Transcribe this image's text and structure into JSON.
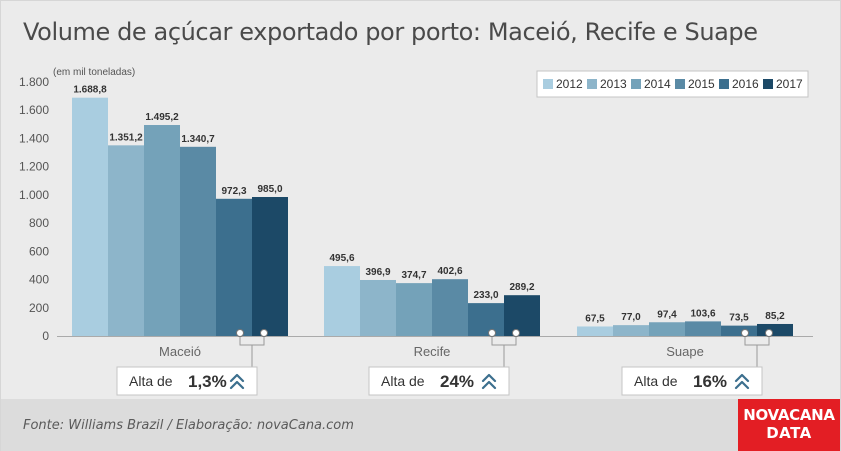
{
  "title": "Volume de açúcar exportado por porto: Maceió, Recife e Suape",
  "source": "Fonte: Williams Brazil / Elaboração: novaCana.com",
  "logo": {
    "line1": "NOVACANA",
    "line2": "DATA"
  },
  "colors": {
    "2012": "#a9cde0",
    "2013": "#8db5ca",
    "2014": "#74a2b9",
    "2015": "#5a8aa5",
    "2016": "#3c6f8e",
    "2017": "#1c4967",
    "callout_arrow": "#3c6f8e",
    "logo_bg": "#e31e24"
  },
  "chart_data": {
    "type": "bar",
    "title": "Volume de açúcar exportado por porto: Maceió, Recife e Suape",
    "unit_label": "(em mil toneladas)",
    "categories": [
      "Maceió",
      "Recife",
      "Suape"
    ],
    "series": [
      {
        "name": "2012",
        "values": [
          1688.8,
          495.6,
          67.5
        ],
        "labels": [
          "1.688,8",
          "495,6",
          "67,5"
        ]
      },
      {
        "name": "2013",
        "values": [
          1351.2,
          396.9,
          77.0
        ],
        "labels": [
          "1.351,2",
          "396,9",
          "77,0"
        ]
      },
      {
        "name": "2014",
        "values": [
          1495.2,
          374.7,
          97.4
        ],
        "labels": [
          "1.495,2",
          "374,7",
          "97,4"
        ]
      },
      {
        "name": "2015",
        "values": [
          1340.7,
          402.6,
          103.6
        ],
        "labels": [
          "1.340,7",
          "402,6",
          "103,6"
        ]
      },
      {
        "name": "2016",
        "values": [
          972.3,
          233.0,
          73.5
        ],
        "labels": [
          "972,3",
          "233,0",
          "73,5"
        ]
      },
      {
        "name": "2017",
        "values": [
          985.0,
          289.2,
          85.2
        ],
        "labels": [
          "985,0",
          "289,2",
          "85,2"
        ]
      }
    ],
    "yticks": [
      {
        "value": 0,
        "label": "0"
      },
      {
        "value": 200,
        "label": "200"
      },
      {
        "value": 400,
        "label": "400"
      },
      {
        "value": 600,
        "label": "600"
      },
      {
        "value": 800,
        "label": "800"
      },
      {
        "value": 1000,
        "label": "1.000"
      },
      {
        "value": 1200,
        "label": "1.200"
      },
      {
        "value": 1400,
        "label": "1.400"
      },
      {
        "value": 1600,
        "label": "1.600"
      },
      {
        "value": 1800,
        "label": "1.800"
      }
    ],
    "ylim": [
      0,
      1800
    ],
    "grid": false,
    "legend_position": "top-right",
    "callouts": [
      {
        "category": "Maceió",
        "prefix": "Alta de",
        "value": "1,3%"
      },
      {
        "category": "Recife",
        "prefix": "Alta de",
        "value": "24%"
      },
      {
        "category": "Suape",
        "prefix": "Alta de",
        "value": "16%"
      }
    ]
  }
}
